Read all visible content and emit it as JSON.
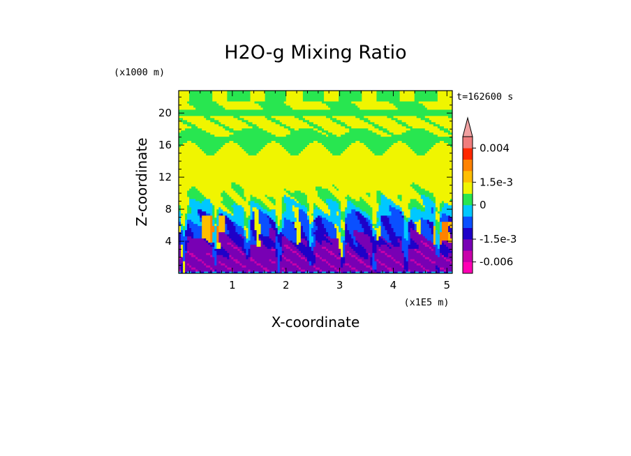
{
  "chart_data": {
    "type": "heatmap",
    "title": "H2O-g Mixing Ratio",
    "xlabel": "X-coordinate",
    "ylabel": "Z-coordinate",
    "x_unit": "(x1E5 m)",
    "y_unit": "(x1000 m)",
    "time_label": "t=162600 s",
    "xlim": [
      0,
      5.1
    ],
    "ylim": [
      0,
      22.8
    ],
    "x_ticks": [
      1,
      2,
      3,
      4,
      5
    ],
    "y_ticks": [
      4,
      8,
      12,
      16,
      20
    ],
    "colorbar": {
      "colors": [
        "#ff00b4",
        "#c800aa",
        "#7800b4",
        "#1e00c8",
        "#0a50ff",
        "#00c8ff",
        "#28e650",
        "#f0f500",
        "#ffbe00",
        "#ff8200",
        "#ff2800",
        "#f07d7d",
        "#f0a0a0"
      ],
      "levels": [
        -0.01,
        -0.006,
        -0.003,
        -0.0015,
        -0.0008,
        -0.0003,
        0,
        0.0008,
        0.0015,
        0.0025,
        0.003,
        0.004,
        0.0048
      ],
      "tick_values": [
        0.004,
        0.0015,
        0,
        -0.0015,
        -0.006
      ],
      "tick_labels": [
        "0.004",
        "1.5e-3",
        "0",
        "-1.5e-3",
        "-0.006"
      ],
      "extend": "max"
    },
    "grid": false,
    "field_description_bands": [
      {
        "z_range": [
          20.2,
          22.8
        ],
        "dominant": "yellow/green alternating"
      },
      {
        "z_range": [
          17.5,
          20.2
        ],
        "dominant": "yellow"
      },
      {
        "z_range": [
          16,
          17.5
        ],
        "dominant": "green"
      },
      {
        "z_range": [
          9.5,
          16
        ],
        "dominant": "yellow"
      },
      {
        "z_range": [
          7,
          9.5
        ],
        "dominant": "green/cyan"
      },
      {
        "z_range": [
          4,
          7
        ],
        "dominant": "blue with orange plumes"
      },
      {
        "z_range": [
          0,
          4
        ],
        "dominant": "purple"
      }
    ]
  }
}
